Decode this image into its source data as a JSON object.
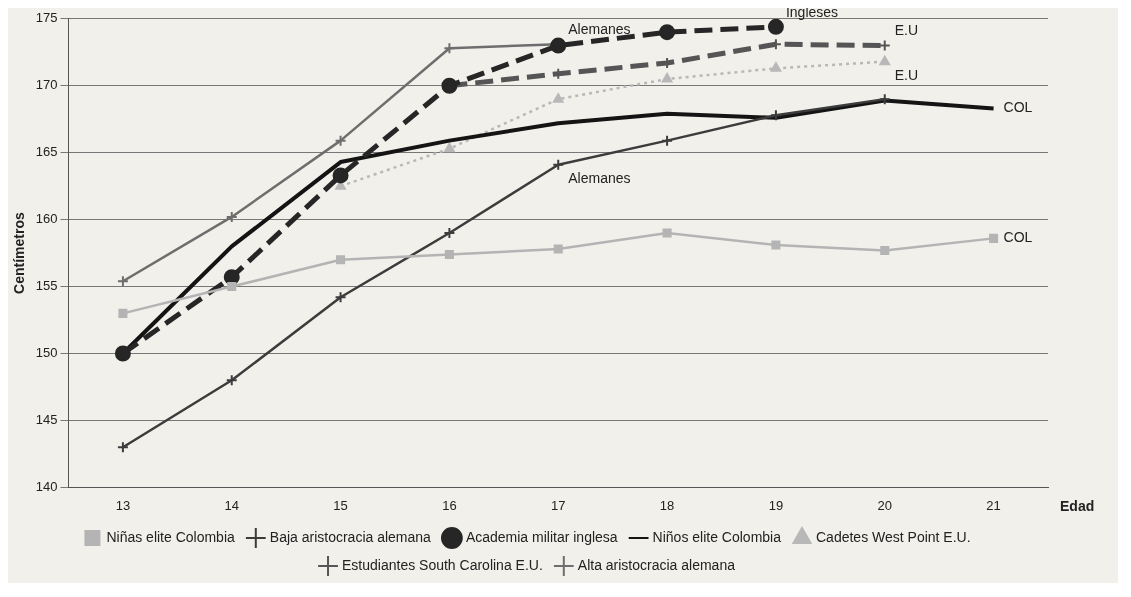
{
  "chart_data": {
    "type": "line",
    "xlabel": "Edad",
    "ylabel": "Centímetros",
    "categories": [
      "13",
      "14",
      "15",
      "16",
      "17",
      "18",
      "19",
      "20",
      "21"
    ],
    "series": [
      {
        "name": "Niñas elite Colombia",
        "color": "#b4b4b4",
        "marker": "square",
        "line_style": "solid",
        "values": [
          153,
          155,
          157,
          157.4,
          157.8,
          159,
          158.1,
          157.7,
          158.6
        ]
      },
      {
        "name": "Baja aristocracia alemana",
        "color": "#3c3c3c",
        "marker": "cross",
        "line_style": "solid",
        "values": [
          143,
          148,
          154.2,
          159,
          164.1,
          165.9,
          167.8,
          169,
          null
        ]
      },
      {
        "name": "Academia militar inglesa",
        "color": "#262626",
        "marker": "circle",
        "line_style": "dashed",
        "values": [
          150,
          155.7,
          163.3,
          170,
          173,
          174,
          174.4,
          null,
          null
        ]
      },
      {
        "name": "Niños elite Colombia",
        "color": "#141414",
        "marker": "none",
        "line_style": "solid",
        "values": [
          150,
          158,
          164.3,
          165.9,
          167.2,
          167.9,
          167.6,
          168.9,
          168.3
        ]
      },
      {
        "name": "Cadetes West Point E.U.",
        "color": "#b8b8b8",
        "marker": "triangle",
        "line_style": "dotted",
        "values": [
          null,
          null,
          162.5,
          165.3,
          169,
          170.5,
          171.3,
          171.8,
          null
        ]
      },
      {
        "name": "Estudiantes South Carolina E.U.",
        "color": "#555555",
        "marker": "cross",
        "line_style": "dashed",
        "values": [
          null,
          null,
          null,
          170,
          170.9,
          171.7,
          173.1,
          173,
          null
        ]
      },
      {
        "name": "Alta aristocracia alemana",
        "color": "#6e6e6e",
        "marker": "cross",
        "line_style": "solid",
        "values": [
          155.4,
          160.2,
          165.9,
          172.8,
          173.1,
          null,
          null,
          null,
          null
        ]
      }
    ],
    "ylim": [
      140,
      175
    ],
    "yticks": [
      140,
      145,
      150,
      155,
      160,
      165,
      170,
      175
    ],
    "grid": "y",
    "legend": "bottom",
    "annotations": [
      {
        "text": "Alemanes",
        "x": "17",
        "y": 173.1
      },
      {
        "text": "Ingleses",
        "x": "19",
        "y": 174.4
      },
      {
        "text": "E.U",
        "x": "20",
        "y": 173
      },
      {
        "text": "E.U",
        "x": "20",
        "y": 171.8
      },
      {
        "text": "COL",
        "x": "21",
        "y": 168.3
      },
      {
        "text": "COL",
        "x": "21",
        "y": 158.6
      },
      {
        "text": "Alemanes",
        "x": "17",
        "y": 164.1
      }
    ]
  }
}
